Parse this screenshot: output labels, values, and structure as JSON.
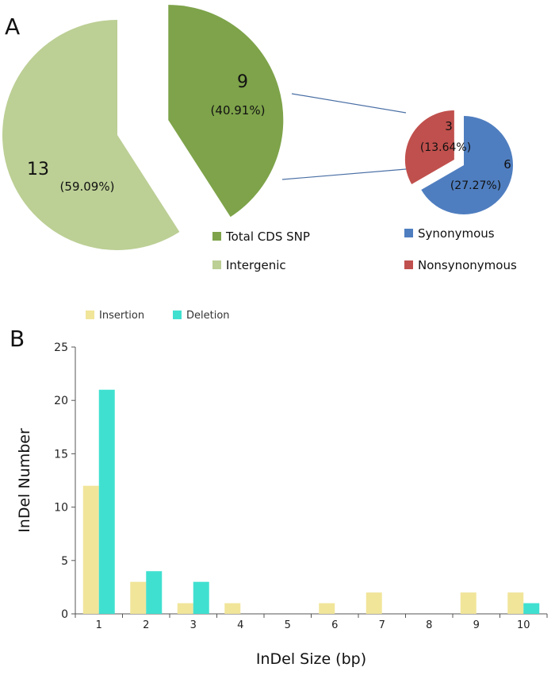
{
  "panels": {
    "a_label": "A",
    "b_label": "B"
  },
  "chart_data": [
    {
      "type": "pie",
      "panel": "A",
      "slices": [
        {
          "name": "Total CDS SNP",
          "value": 9,
          "label": "9",
          "percent_label": "(40.91%)",
          "color": "#7ea34a",
          "exploded": true
        },
        {
          "name": "Intergenic",
          "value": 13,
          "label": "13",
          "percent_label": "(59.09%)",
          "color": "#bccf95",
          "exploded": false
        }
      ],
      "legend": {
        "placement": "bottom"
      }
    },
    {
      "type": "pie",
      "panel": "A",
      "breakdown_of": "Total CDS SNP",
      "slices": [
        {
          "name": "Synonymous",
          "value": 6,
          "label": "6",
          "percent_label": "(27.27%)",
          "color": "#4f7ec0",
          "exploded": false
        },
        {
          "name": "Nonsynonymous",
          "value": 3,
          "label": "3",
          "percent_label": "(13.64%)",
          "color": "#c0504d",
          "exploded": true
        }
      ],
      "legend": {
        "placement": "bottom"
      }
    },
    {
      "type": "bar",
      "panel": "B",
      "categories": [
        "1",
        "2",
        "3",
        "4",
        "5",
        "6",
        "7",
        "8",
        "9",
        "10"
      ],
      "series": [
        {
          "name": "Insertion",
          "color": "#f1e59a",
          "values": [
            12,
            3,
            1,
            1,
            0,
            1,
            2,
            0,
            2,
            2
          ]
        },
        {
          "name": "Deletion",
          "color": "#40e0d0",
          "values": [
            21,
            4,
            3,
            0,
            0,
            0,
            0,
            0,
            0,
            1
          ]
        }
      ],
      "xlabel": "InDel Size (bp)",
      "ylabel": "InDel Number",
      "ylim": [
        0,
        25
      ],
      "yticks": [
        0,
        5,
        10,
        15,
        20,
        25
      ],
      "grid": false,
      "legend": {
        "placement": "top-left"
      }
    }
  ]
}
